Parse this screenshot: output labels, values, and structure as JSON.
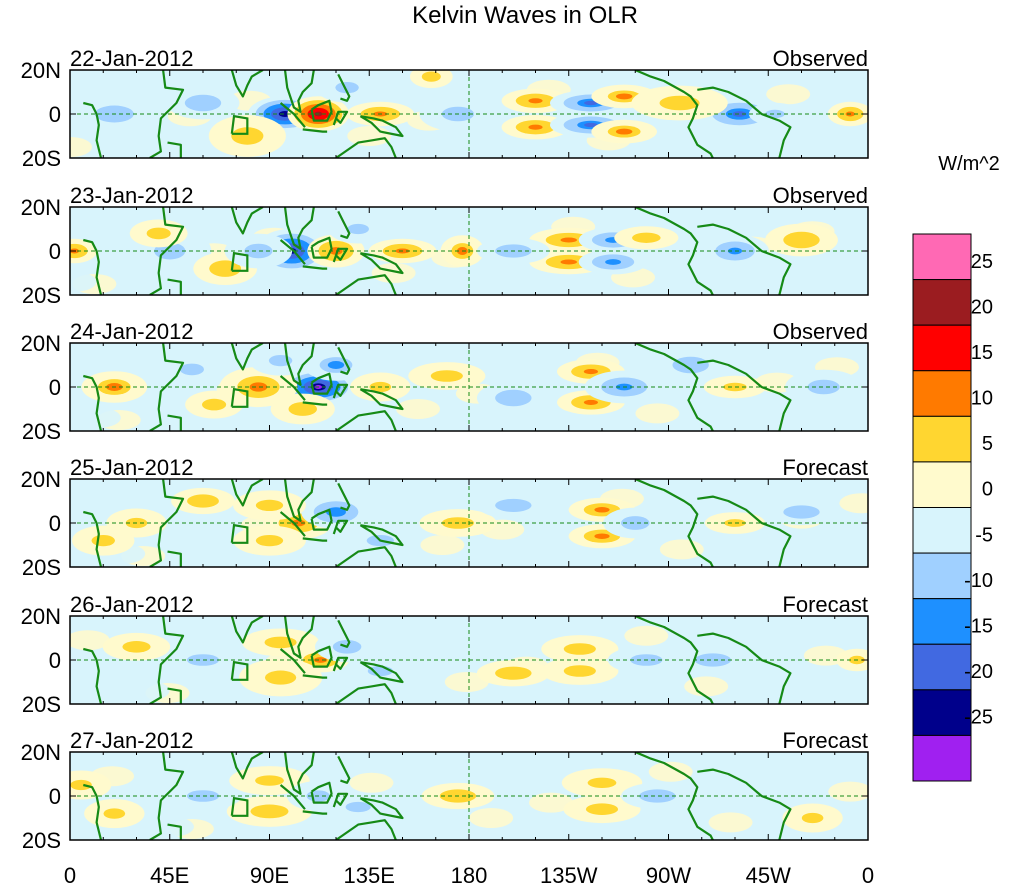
{
  "chart_data": {
    "type": "heatmap",
    "title": "Kelvin Waves in OLR",
    "units": "W/m^2",
    "x_tick_labels": [
      "0",
      "45E",
      "90E",
      "135E",
      "180",
      "135W",
      "90W",
      "45W",
      "0"
    ],
    "x_tick_lon": [
      0,
      45,
      90,
      135,
      180,
      225,
      270,
      315,
      360
    ],
    "y_tick_labels": [
      "20N",
      "0",
      "20S"
    ],
    "y_tick_lat": [
      20,
      0,
      -20
    ],
    "ylim": [
      -20,
      20
    ],
    "xlim": [
      0,
      360
    ],
    "panels": [
      {
        "date": "22-Jan-2012",
        "kind": "Observed",
        "blobs": [
          [
            97,
            0,
            6,
            4,
            -24
          ],
          [
            112,
            0,
            5,
            4,
            23
          ],
          [
            140,
            0,
            6,
            3,
            12
          ],
          [
            163,
            17,
            4,
            3,
            9
          ],
          [
            210,
            6,
            6,
            3,
            12
          ],
          [
            210,
            -6,
            6,
            3,
            12
          ],
          [
            235,
            5,
            7,
            3,
            -15
          ],
          [
            235,
            -5,
            7,
            3,
            -15
          ],
          [
            250,
            8,
            6,
            3,
            10
          ],
          [
            250,
            -8,
            6,
            3,
            10
          ],
          [
            302,
            0,
            7,
            4,
            -15
          ],
          [
            318,
            0,
            5,
            3,
            -8
          ],
          [
            352,
            0,
            4,
            3,
            12
          ],
          [
            20,
            0,
            10,
            6,
            -8
          ],
          [
            60,
            5,
            8,
            5,
            -5
          ],
          [
            80,
            -10,
            8,
            6,
            6
          ],
          [
            125,
            12,
            6,
            4,
            -8
          ],
          [
            175,
            0,
            8,
            5,
            -6
          ],
          [
            275,
            5,
            10,
            5,
            6
          ]
        ]
      },
      {
        "date": "23-Jan-2012",
        "kind": "Observed",
        "blobs": [
          [
            100,
            0,
            6,
            5,
            -23
          ],
          [
            120,
            0,
            5,
            4,
            13
          ],
          [
            150,
            0,
            6,
            3,
            12
          ],
          [
            177,
            0,
            4,
            4,
            10
          ],
          [
            225,
            5,
            7,
            3,
            12
          ],
          [
            225,
            -5,
            7,
            3,
            12
          ],
          [
            245,
            5,
            6,
            3,
            -13
          ],
          [
            245,
            -5,
            6,
            3,
            -13
          ],
          [
            260,
            6,
            6,
            3,
            9
          ],
          [
            300,
            0,
            6,
            4,
            -12
          ],
          [
            2,
            0,
            4,
            3,
            12
          ],
          [
            45,
            0,
            8,
            6,
            -8
          ],
          [
            40,
            8,
            6,
            4,
            6
          ],
          [
            70,
            -8,
            7,
            5,
            5
          ],
          [
            85,
            0,
            7,
            5,
            -6
          ],
          [
            130,
            10,
            6,
            4,
            -7
          ],
          [
            200,
            0,
            8,
            4,
            -5
          ],
          [
            330,
            5,
            8,
            5,
            5
          ]
        ]
      },
      {
        "date": "24-Jan-2012",
        "kind": "Observed",
        "blobs": [
          [
            112,
            0,
            6,
            4,
            -25
          ],
          [
            85,
            0,
            7,
            5,
            11
          ],
          [
            105,
            -10,
            6,
            4,
            9
          ],
          [
            120,
            10,
            6,
            4,
            -10
          ],
          [
            140,
            0,
            6,
            4,
            7
          ],
          [
            235,
            7,
            6,
            3,
            12
          ],
          [
            235,
            -7,
            6,
            3,
            12
          ],
          [
            250,
            0,
            7,
            4,
            -12
          ],
          [
            300,
            0,
            6,
            3,
            8
          ],
          [
            20,
            0,
            6,
            4,
            10
          ],
          [
            55,
            8,
            6,
            4,
            -6
          ],
          [
            65,
            -8,
            6,
            4,
            6
          ],
          [
            95,
            12,
            6,
            4,
            -8
          ],
          [
            170,
            5,
            8,
            4,
            6
          ],
          [
            200,
            -5,
            8,
            5,
            -5
          ],
          [
            280,
            10,
            8,
            5,
            -5
          ],
          [
            340,
            0,
            8,
            5,
            -6
          ]
        ]
      },
      {
        "date": "25-Jan-2012",
        "kind": "Forecast",
        "blobs": [
          [
            103,
            0,
            6,
            4,
            12
          ],
          [
            120,
            5,
            6,
            4,
            -14
          ],
          [
            90,
            8,
            7,
            4,
            8
          ],
          [
            90,
            -8,
            7,
            4,
            8
          ],
          [
            240,
            6,
            6,
            3,
            11
          ],
          [
            240,
            -6,
            6,
            3,
            11
          ],
          [
            255,
            0,
            6,
            4,
            -9
          ],
          [
            300,
            0,
            6,
            3,
            7
          ],
          [
            30,
            0,
            6,
            4,
            7
          ],
          [
            15,
            -8,
            6,
            4,
            8
          ],
          [
            60,
            10,
            7,
            4,
            5
          ],
          [
            140,
            -8,
            7,
            4,
            -8
          ],
          [
            175,
            0,
            8,
            4,
            6
          ],
          [
            200,
            8,
            8,
            4,
            -5
          ],
          [
            330,
            5,
            8,
            4,
            -5
          ]
        ]
      },
      {
        "date": "26-Jan-2012",
        "kind": "Forecast",
        "blobs": [
          [
            113,
            0,
            5,
            3,
            13
          ],
          [
            95,
            -8,
            8,
            5,
            8
          ],
          [
            95,
            8,
            8,
            4,
            6
          ],
          [
            125,
            6,
            6,
            4,
            -9
          ],
          [
            140,
            -5,
            7,
            4,
            -7
          ],
          [
            60,
            0,
            8,
            4,
            -6
          ],
          [
            30,
            6,
            7,
            4,
            6
          ],
          [
            230,
            5,
            8,
            4,
            6
          ],
          [
            230,
            -5,
            8,
            4,
            6
          ],
          [
            260,
            0,
            8,
            4,
            -6
          ],
          [
            290,
            0,
            8,
            4,
            -5
          ],
          [
            355,
            0,
            4,
            3,
            8
          ],
          [
            175,
            5,
            8,
            4,
            -4
          ],
          [
            200,
            -6,
            8,
            4,
            5
          ]
        ]
      },
      {
        "date": "27-Jan-2012",
        "kind": "Forecast",
        "blobs": [
          [
            90,
            -7,
            8,
            4,
            9
          ],
          [
            90,
            7,
            8,
            4,
            7
          ],
          [
            112,
            0,
            6,
            4,
            -8
          ],
          [
            130,
            -5,
            7,
            4,
            -7
          ],
          [
            60,
            0,
            8,
            4,
            -6
          ],
          [
            20,
            -8,
            6,
            4,
            7
          ],
          [
            5,
            5,
            6,
            4,
            7
          ],
          [
            240,
            6,
            8,
            4,
            7
          ],
          [
            240,
            -6,
            8,
            4,
            6
          ],
          [
            265,
            0,
            8,
            4,
            -5
          ],
          [
            300,
            0,
            8,
            4,
            -4
          ],
          [
            335,
            -10,
            6,
            4,
            7
          ],
          [
            175,
            0,
            8,
            4,
            5
          ],
          [
            200,
            8,
            8,
            4,
            -4
          ]
        ]
      }
    ]
  },
  "colorbar": {
    "labels": [
      "25",
      "20",
      "15",
      "10",
      "5",
      "0",
      "-5",
      "-10",
      "-15",
      "-20",
      "-25"
    ],
    "thresholds": [
      -25,
      -20,
      -15,
      -10,
      -5,
      0,
      5,
      10,
      15,
      20,
      25
    ],
    "colors": [
      "#a020f0",
      "#00008b",
      "#4169e1",
      "#1e90ff",
      "#a0d0ff",
      "#d8f4fc",
      "#fffacd",
      "#ffd630",
      "#ff7a00",
      "#ff0000",
      "#9b1c20",
      "#ff69b4"
    ]
  },
  "colors": {
    "coast": "#168a16",
    "grid": "#168a16"
  }
}
